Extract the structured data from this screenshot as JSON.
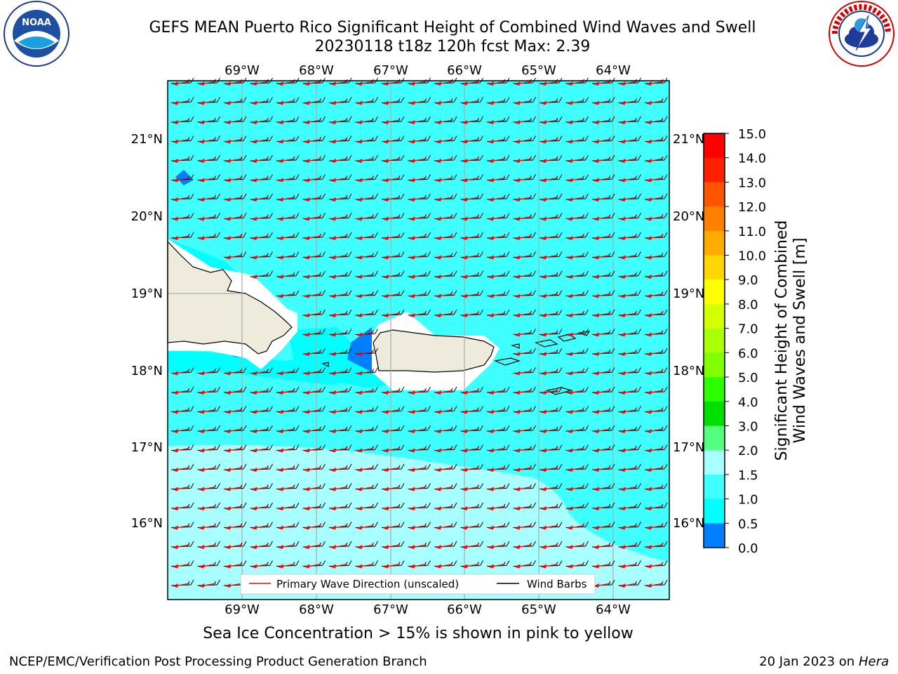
{
  "title": {
    "line1": "GEFS MEAN Puerto Rico Significant Height of Combined Wind Waves and Swell",
    "line2": "20230118 t18z 120h fcst   Max: 2.39"
  },
  "map": {
    "lon_ticks": [
      "69°W",
      "68°W",
      "67°W",
      "66°W",
      "65°W",
      "64°W"
    ],
    "lat_ticks": [
      "21°N",
      "20°N",
      "19°N",
      "18°N",
      "17°N",
      "16°N"
    ],
    "legend": {
      "wave_direction": "Primary Wave Direction (unscaled)",
      "wind_barbs": "Wind Barbs"
    },
    "colors": {
      "ocean_main": "#40ffff",
      "ocean_low": "#00ffff",
      "ocean_high": "#a8ffff",
      "land": "#efebdc",
      "arrow": "#ff0000"
    }
  },
  "colorbar": {
    "label_line1": "Significant Height of Combined",
    "label_line2": "Wind Waves and Swell [m]",
    "ticks": [
      "15.0",
      "14.0",
      "13.0",
      "12.0",
      "11.0",
      "10.0",
      "9.0",
      "8.0",
      "7.0",
      "6.0",
      "5.0",
      "4.0",
      "3.0",
      "2.0",
      "1.5",
      "1.0",
      "0.5",
      "0.0"
    ],
    "colors": [
      "#ff0000",
      "#ff2000",
      "#ff5500",
      "#ff8000",
      "#ffab00",
      "#ffd500",
      "#ffff00",
      "#d4ff00",
      "#aaff00",
      "#80ff00",
      "#2bff00",
      "#00e000",
      "#55ff80",
      "#a8ffff",
      "#40ffff",
      "#00ffff",
      "#0080ff",
      "#0000ff"
    ]
  },
  "subtitle": "Sea Ice Concentration > 15% is shown in pink to yellow",
  "footer": {
    "left": "NCEP/EMC/Verification Post Processing Product Generation Branch",
    "right_prefix": "20 Jan 2023 on ",
    "right_host": "Hera"
  }
}
